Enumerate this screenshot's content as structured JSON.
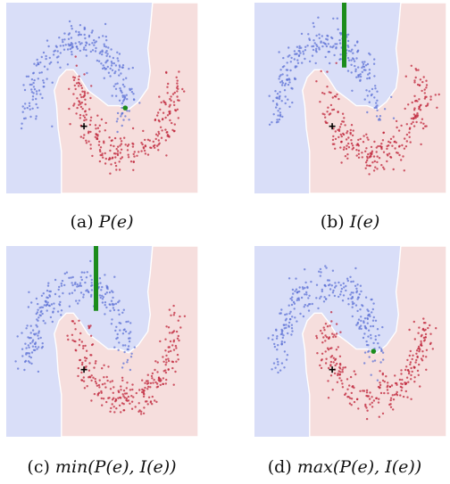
{
  "colors": {
    "region_blue": "#d9def8",
    "region_red": "#f6dedd",
    "boundary": "#ffffff",
    "points_blue": "#5f73d6",
    "points_red": "#bf2338",
    "marker": "#1b8c1b",
    "cross": "#000000"
  },
  "chart_data": [
    {
      "type": "scatter",
      "caption_label": "(a)",
      "caption_math": "P(e)",
      "xlim": [
        -1.5,
        2.5
      ],
      "ylim": [
        -1.0,
        1.5
      ],
      "overlay": {
        "type": "point",
        "x": 0.98,
        "y": 0.12
      },
      "cross": {
        "x": 0.12,
        "y": -0.12
      },
      "seed": 7
    },
    {
      "type": "scatter",
      "caption_label": "(b)",
      "caption_math": "I(e)",
      "xlim": [
        -1.5,
        2.5
      ],
      "ylim": [
        -1.0,
        1.5
      ],
      "overlay": {
        "type": "line",
        "x": 0.37,
        "y0": 0.65,
        "y1": 1.5
      },
      "cross": {
        "x": 0.12,
        "y": -0.12
      },
      "seed": 11
    },
    {
      "type": "scatter",
      "caption_label": "(c)",
      "caption_math": "min(P(e), I(e))",
      "xlim": [
        -1.5,
        2.5
      ],
      "ylim": [
        -1.0,
        1.5
      ],
      "overlay": {
        "type": "line",
        "x": 0.37,
        "y0": 0.65,
        "y1": 1.5
      },
      "cross": {
        "x": 0.12,
        "y": -0.12
      },
      "seed": 13
    },
    {
      "type": "scatter",
      "caption_label": "(d)",
      "caption_math": "max(P(e), I(e))",
      "xlim": [
        -1.5,
        2.5
      ],
      "ylim": [
        -1.0,
        1.5
      ],
      "overlay": {
        "type": "point",
        "x": 0.98,
        "y": 0.12
      },
      "cross": {
        "x": 0.12,
        "y": -0.12
      },
      "seed": 17
    }
  ]
}
